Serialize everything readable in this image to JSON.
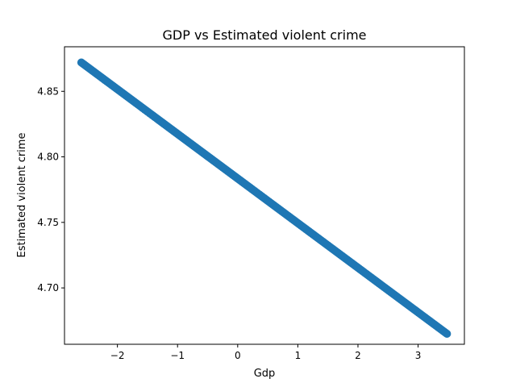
{
  "chart_data": {
    "type": "scatter",
    "title": "GDP vs Estimated violent crime",
    "xlabel": "Gdp",
    "ylabel": "Estimated violent crime",
    "xlim": [
      -2.88,
      3.77
    ],
    "ylim": [
      4.657,
      4.884
    ],
    "xticks": [
      -2,
      -1,
      0,
      1,
      2,
      3
    ],
    "xtick_labels": [
      "−2",
      "−1",
      "0",
      "1",
      "2",
      "3"
    ],
    "yticks": [
      4.7,
      4.75,
      4.8,
      4.85
    ],
    "ytick_labels": [
      "4.70",
      "4.75",
      "4.80",
      "4.85"
    ],
    "grid": false,
    "series": [
      {
        "color": "#1f77b4",
        "x_start": -2.6,
        "x_end": 3.48,
        "y_start": 4.872,
        "y_end": 4.665,
        "point_count": 300
      }
    ]
  }
}
